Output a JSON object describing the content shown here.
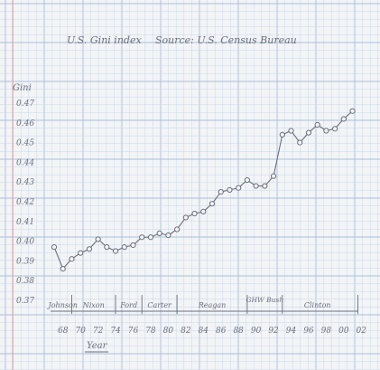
{
  "chart_data": {
    "type": "line",
    "title": "U.S. Gini index",
    "source": "Source: U.S. Census Bureau",
    "ylabel": "Gini",
    "xlabel": "Year",
    "xlim": [
      1967,
      2003
    ],
    "ylim": [
      0.37,
      0.48
    ],
    "y_ticks": [
      {
        "value": 0.37,
        "label": "0.37"
      },
      {
        "value": 0.38,
        "label": "0.38"
      },
      {
        "value": 0.39,
        "label": "0.39"
      },
      {
        "value": 0.4,
        "label": "0.40"
      },
      {
        "value": 0.41,
        "label": "0.41"
      },
      {
        "value": 0.42,
        "label": "0.42"
      },
      {
        "value": 0.43,
        "label": "0.43"
      },
      {
        "value": 0.44,
        "label": "0.44"
      },
      {
        "value": 0.45,
        "label": "0.45"
      },
      {
        "value": 0.46,
        "label": "0.46"
      },
      {
        "value": 0.47,
        "label": "0.47"
      }
    ],
    "x_ticks": [
      {
        "value": 1968,
        "label": "68"
      },
      {
        "value": 1970,
        "label": "70"
      },
      {
        "value": 1972,
        "label": "72"
      },
      {
        "value": 1974,
        "label": "74"
      },
      {
        "value": 1976,
        "label": "76"
      },
      {
        "value": 1978,
        "label": "78"
      },
      {
        "value": 1980,
        "label": "80"
      },
      {
        "value": 1982,
        "label": "82"
      },
      {
        "value": 1984,
        "label": "84"
      },
      {
        "value": 1986,
        "label": "86"
      },
      {
        "value": 1988,
        "label": "88"
      },
      {
        "value": 1990,
        "label": "90"
      },
      {
        "value": 1992,
        "label": "92"
      },
      {
        "value": 1994,
        "label": "94"
      },
      {
        "value": 1996,
        "label": "96"
      },
      {
        "value": 1998,
        "label": "98"
      },
      {
        "value": 2000,
        "label": "00"
      },
      {
        "value": 2002,
        "label": "02"
      }
    ],
    "series": [
      {
        "x": [
          1967,
          1968,
          1969,
          1970,
          1971,
          1972,
          1973,
          1974,
          1975,
          1976,
          1977,
          1978,
          1979,
          1980,
          1981,
          1982,
          1983,
          1984,
          1985,
          1986,
          1987,
          1988,
          1989,
          1990,
          1991,
          1992,
          1993,
          1994,
          1995,
          1996,
          1997,
          1998,
          1999,
          2000,
          2001
        ],
        "y": [
          0.397,
          0.386,
          0.391,
          0.394,
          0.396,
          0.401,
          0.397,
          0.395,
          0.397,
          0.398,
          0.402,
          0.402,
          0.404,
          0.403,
          0.406,
          0.412,
          0.414,
          0.415,
          0.419,
          0.425,
          0.426,
          0.427,
          0.431,
          0.428,
          0.428,
          0.433,
          0.454,
          0.456,
          0.45,
          0.455,
          0.459,
          0.456,
          0.457,
          0.462,
          0.466
        ]
      }
    ],
    "presidents": [
      {
        "name": "Johnson",
        "start": 1967,
        "end": 1969
      },
      {
        "name": "Nixon",
        "start": 1969,
        "end": 1974
      },
      {
        "name": "Ford",
        "start": 1974,
        "end": 1977
      },
      {
        "name": "Carter",
        "start": 1977,
        "end": 1981
      },
      {
        "name": "Reagan",
        "start": 1981,
        "end": 1989
      },
      {
        "name": "GHW Bush",
        "start": 1989,
        "end": 1993
      },
      {
        "name": "Clinton",
        "start": 1993,
        "end": 2001
      }
    ],
    "grid": true,
    "colors": {
      "paper": "#f3f4f6",
      "grid_minor": "#c9d8ea",
      "grid_major": "#a9bfdc",
      "ink": "#6b6f7d",
      "margin_line": "#d9a0a0"
    }
  }
}
